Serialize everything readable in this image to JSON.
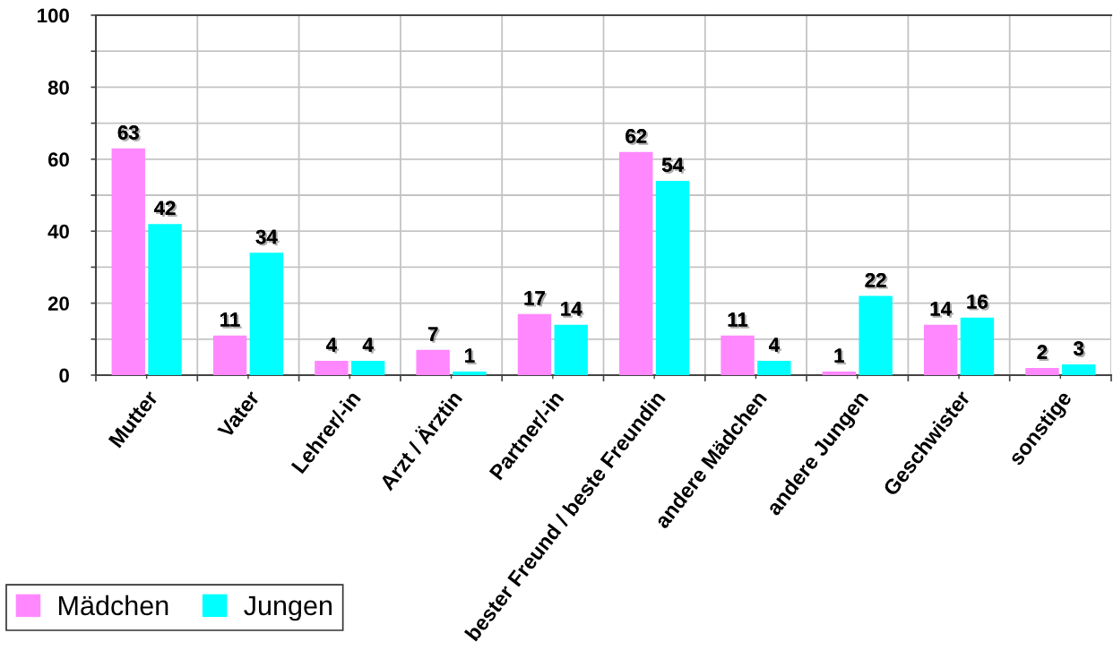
{
  "chart_data": {
    "type": "bar",
    "categories": [
      "Mutter",
      "Vater",
      "Lehrer/-in",
      "Arzt / Ärztin",
      "Partner/-in",
      "bester Freund / beste Freundin",
      "andere Mädchen",
      "andere Jungen",
      "Geschwister",
      "sonstige"
    ],
    "series": [
      {
        "name": "Mädchen",
        "color": "#ff88ff",
        "values": [
          63,
          11,
          4,
          7,
          17,
          62,
          11,
          1,
          14,
          2
        ]
      },
      {
        "name": "Jungen",
        "color": "#00ffff",
        "values": [
          42,
          34,
          4,
          1,
          14,
          54,
          4,
          22,
          16,
          3
        ]
      }
    ],
    "ylim": [
      0,
      100
    ],
    "yticks": [
      0,
      {
        "value": 10,
        "label": null
      },
      20,
      {
        "value": 30,
        "label": null
      },
      40,
      {
        "value": 50,
        "label": null
      },
      60,
      {
        "value": 70,
        "label": null
      },
      80,
      {
        "value": 90,
        "label": null
      },
      100
    ],
    "grid": true,
    "legend": "bottom left",
    "data_labels": true
  }
}
